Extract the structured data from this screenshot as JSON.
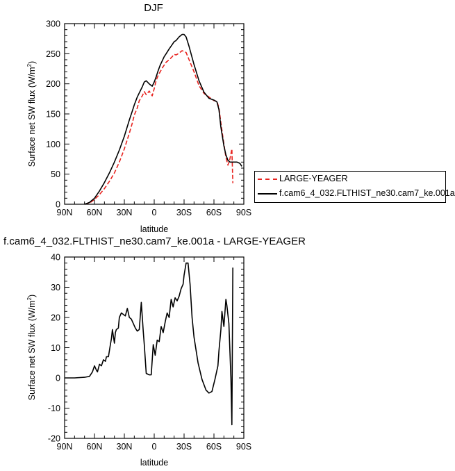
{
  "chart_data": [
    {
      "type": "line",
      "title": "DJF",
      "xlabel": "latitude",
      "ylabel_base": "Surface net SW flux (W/m",
      "ylabel_sup": "2",
      "ylabel_end": ")",
      "xlim": [
        90,
        -90
      ],
      "ylim": [
        0,
        300
      ],
      "xticks": [
        90,
        60,
        30,
        0,
        -30,
        -60,
        -90
      ],
      "xticklabels": [
        "90N",
        "60N",
        "30N",
        "0",
        "30S",
        "60S",
        "90S"
      ],
      "yticks": [
        0,
        50,
        100,
        150,
        200,
        250,
        300
      ],
      "yticklabels": [
        "0",
        "50",
        "100",
        "150",
        "200",
        "250",
        "300"
      ],
      "legend_placement": "right",
      "series": [
        {
          "name": "LARGE-YEAGER",
          "color": "#e8231f",
          "dash": "dashed",
          "x": [
            70,
            65,
            60,
            55,
            50,
            45,
            40,
            35,
            30,
            25,
            22,
            20,
            17,
            15,
            12,
            10,
            8,
            5,
            2,
            0,
            -2,
            -4,
            -6,
            -8,
            -10,
            -12,
            -15,
            -18,
            -20,
            -22,
            -25,
            -28,
            -30,
            -32,
            -35,
            -40,
            -45,
            -50,
            -55,
            -60,
            -63,
            -65,
            -67,
            -70,
            -72,
            -74,
            -76,
            -78,
            -79
          ],
          "y": [
            0,
            2,
            8,
            16,
            26,
            38,
            52,
            70,
            92,
            118,
            135,
            148,
            160,
            172,
            180,
            187,
            182,
            188,
            180,
            192,
            206,
            214,
            220,
            226,
            231,
            236,
            240,
            245,
            249,
            248,
            251,
            255,
            254,
            252,
            240,
            220,
            197,
            184,
            178,
            172,
            171,
            160,
            135,
            100,
            78,
            65,
            75,
            92,
            35
          ]
        },
        {
          "name": "f.cam6_4_032.FLTHIST_ne30.cam7_ke.001a",
          "color": "#000000",
          "dash": "solid",
          "x": [
            70,
            65,
            60,
            55,
            50,
            45,
            40,
            35,
            30,
            25,
            22,
            20,
            17,
            15,
            12,
            10,
            8,
            5,
            2,
            0,
            -2,
            -4,
            -6,
            -8,
            -10,
            -12,
            -15,
            -18,
            -20,
            -22,
            -25,
            -28,
            -30,
            -32,
            -35,
            -40,
            -45,
            -50,
            -55,
            -60,
            -63,
            -65,
            -67,
            -70,
            -72,
            -74,
            -76,
            -78,
            -80,
            -83,
            -86,
            -88
          ],
          "y": [
            0,
            3,
            10,
            22,
            36,
            52,
            70,
            90,
            113,
            140,
            155,
            165,
            178,
            185,
            195,
            203,
            205,
            200,
            196,
            203,
            212,
            222,
            231,
            238,
            245,
            250,
            258,
            265,
            270,
            272,
            278,
            282,
            282,
            278,
            262,
            232,
            205,
            186,
            176,
            173,
            170,
            157,
            128,
            97,
            82,
            73,
            70,
            70,
            70,
            70,
            68,
            63
          ]
        }
      ]
    },
    {
      "type": "line",
      "title": "f.cam6_4_032.FLTHIST_ne30.cam7_ke.001a - LARGE-YEAGER",
      "xlabel": "latitude",
      "ylabel_base": "Surface net SW flux (W/m",
      "ylabel_sup": "2",
      "ylabel_end": ")",
      "xlim": [
        90,
        -90
      ],
      "ylim": [
        -20,
        40
      ],
      "xticks": [
        90,
        60,
        30,
        0,
        -30,
        -60,
        -90
      ],
      "xticklabels": [
        "90N",
        "60N",
        "30N",
        "0",
        "30S",
        "60S",
        "90S"
      ],
      "yticks": [
        -20,
        -10,
        0,
        10,
        20,
        30,
        40
      ],
      "yticklabels": [
        "-20",
        "-10",
        "0",
        "10",
        "20",
        "30",
        "40"
      ],
      "series": [
        {
          "color": "#000000",
          "dash": "solid",
          "x": [
            90,
            80,
            70,
            65,
            62,
            60,
            58,
            57,
            55,
            53,
            51,
            49,
            48,
            46,
            44,
            43,
            42,
            40,
            39,
            38,
            36,
            35,
            33,
            31,
            29,
            27,
            25,
            23,
            21,
            19,
            17,
            15,
            13,
            11,
            10,
            8,
            5,
            3,
            1,
            -1,
            -3,
            -5,
            -7,
            -9,
            -11,
            -13,
            -15,
            -17,
            -19,
            -21,
            -23,
            -25,
            -27,
            -29,
            -30,
            -32,
            -34,
            -36,
            -38,
            -40,
            -44,
            -48,
            -52,
            -55,
            -58,
            -61,
            -64,
            -65,
            -67,
            -68,
            -70,
            -72,
            -73,
            -75,
            -77,
            -78,
            -79
          ],
          "y": [
            0,
            0,
            0.2,
            0.5,
            2,
            4,
            2.5,
            2,
            4.5,
            4,
            6,
            5.5,
            7,
            7,
            11,
            13,
            16,
            11.5,
            15,
            16,
            16.5,
            20,
            21.5,
            21,
            20.5,
            23,
            20,
            19.5,
            18,
            16.5,
            15.5,
            16,
            25,
            15.5,
            11,
            1.5,
            1,
            1,
            11,
            7.5,
            12.5,
            12,
            17,
            15,
            18.5,
            21.5,
            20,
            26,
            23.5,
            26.5,
            25.5,
            27,
            29.5,
            31,
            34,
            38,
            38,
            31,
            20,
            13.5,
            5,
            -0.5,
            -4,
            -5,
            -4.5,
            -0.5,
            4,
            9,
            16,
            22,
            17,
            26,
            24,
            18,
            0,
            -15.5,
            36.5
          ]
        }
      ]
    }
  ]
}
